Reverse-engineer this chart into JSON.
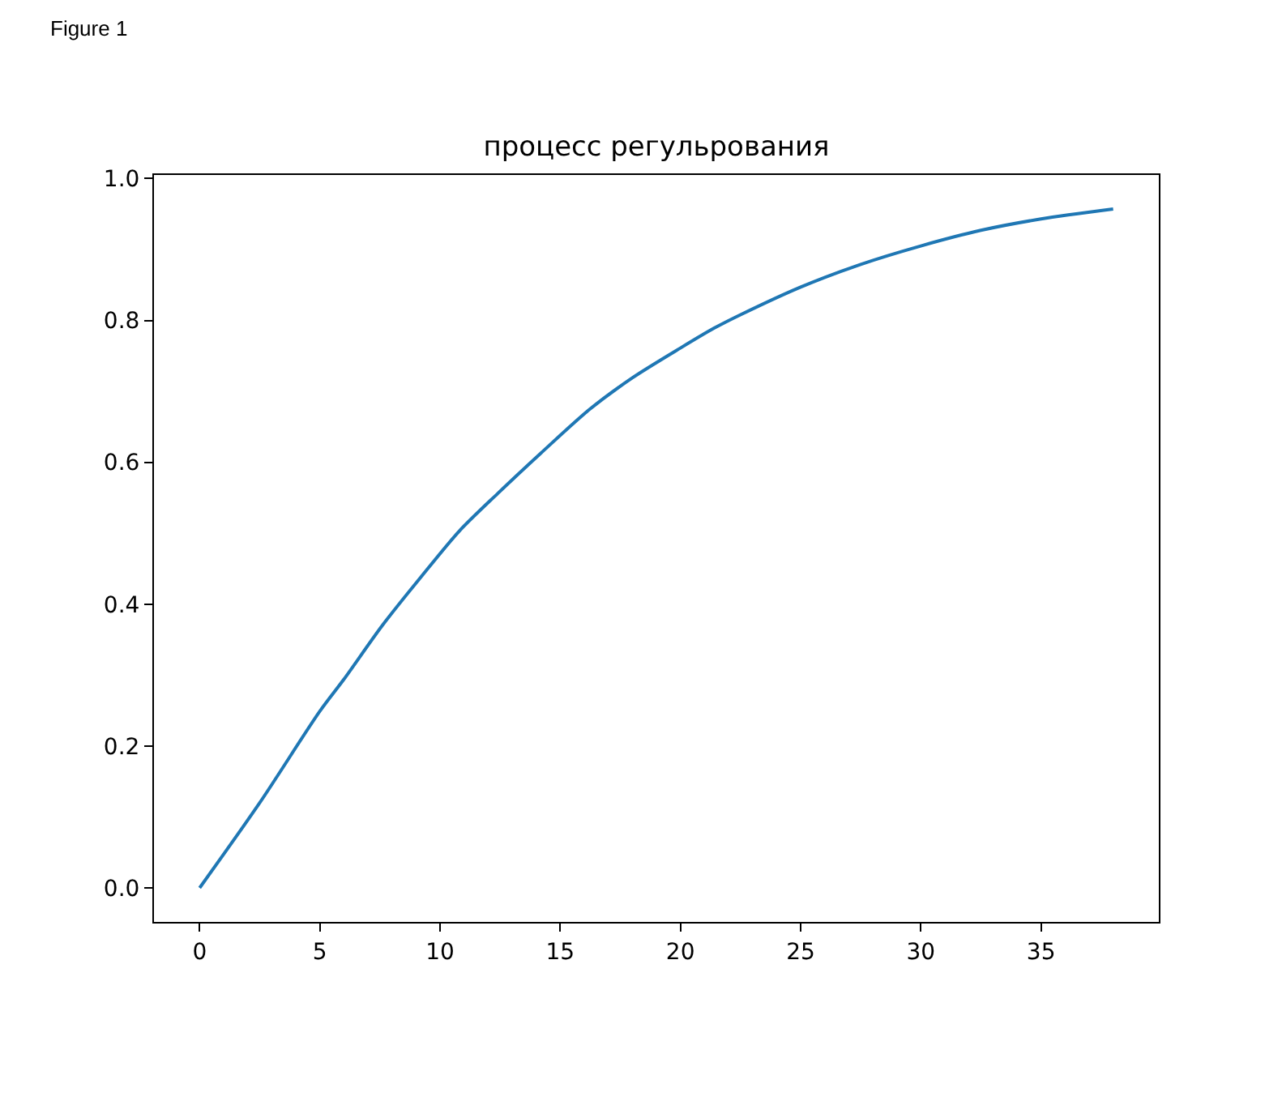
{
  "chart_data": {
    "type": "line",
    "title": "процесс регульрования",
    "annotations": [
      "Figure 1"
    ],
    "x": [
      0,
      2.5,
      5,
      6,
      7.6,
      9.2,
      10.8,
      12.4,
      14.2,
      16.2,
      18,
      20,
      21.4,
      22.5,
      25,
      27.5,
      30,
      32.5,
      35,
      38
    ],
    "series": [
      {
        "color": "#1f77b4",
        "values": [
          0,
          0.12,
          0.249,
          0.294,
          0.37,
          0.438,
          0.503,
          0.556,
          0.613,
          0.674,
          0.719,
          0.761,
          0.789,
          0.808,
          0.847,
          0.879,
          0.905,
          0.927,
          0.943,
          0.957
        ]
      }
    ],
    "xlim": [
      -1.9,
      39.9
    ],
    "ylim": [
      -0.048,
      1.005
    ],
    "xticks": [
      0,
      5,
      10,
      15,
      20,
      25,
      30,
      35
    ],
    "yticks": [
      {
        "value": 0,
        "label": "0.0"
      },
      {
        "value": 0.2,
        "label": "0.2"
      },
      {
        "value": 0.4,
        "label": "0.4"
      },
      {
        "value": 0.6,
        "label": "0.6"
      },
      {
        "value": 0.8,
        "label": "0.8"
      },
      {
        "value": 1.0,
        "label": "1.0"
      }
    ],
    "grid": false,
    "marker": "none",
    "line_style": "solid"
  }
}
